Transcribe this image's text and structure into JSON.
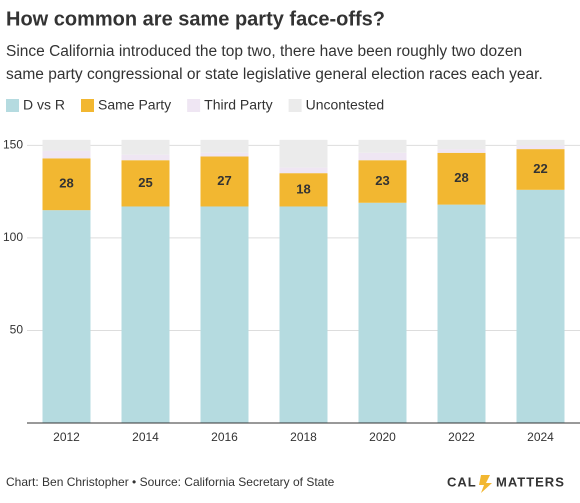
{
  "chart_data": {
    "type": "stacked-bar",
    "title": "How common are same party face-offs?",
    "subtitle": [
      "Since California introduced the top two, there have been roughly two dozen",
      "same party congressional or state legislative general election races each year."
    ],
    "categories": [
      "2012",
      "2014",
      "2016",
      "2018",
      "2020",
      "2022",
      "2024"
    ],
    "series": [
      {
        "name": "D vs R",
        "color": "#b5dbe0",
        "values": [
          115,
          117,
          117,
          117,
          119,
          118,
          126
        ]
      },
      {
        "name": "Same Party",
        "color": "#f2b731",
        "values": [
          28,
          25,
          27,
          18,
          23,
          28,
          22
        ],
        "show_labels": true
      },
      {
        "name": "Third Party",
        "color": "#efe6f3",
        "values": [
          4,
          3,
          2,
          3,
          4,
          2,
          2
        ]
      },
      {
        "name": "Uncontested",
        "color": "#ebebeb",
        "values": [
          6,
          8,
          7,
          15,
          7,
          5,
          3
        ]
      }
    ],
    "ylim": [
      0,
      154
    ],
    "yticks": [
      50,
      100,
      150
    ],
    "grid": true,
    "footer": "Chart: Ben Christopher • Source: California Secretary of State"
  },
  "logo": {
    "left": "CAL",
    "right": "MATTERS"
  }
}
